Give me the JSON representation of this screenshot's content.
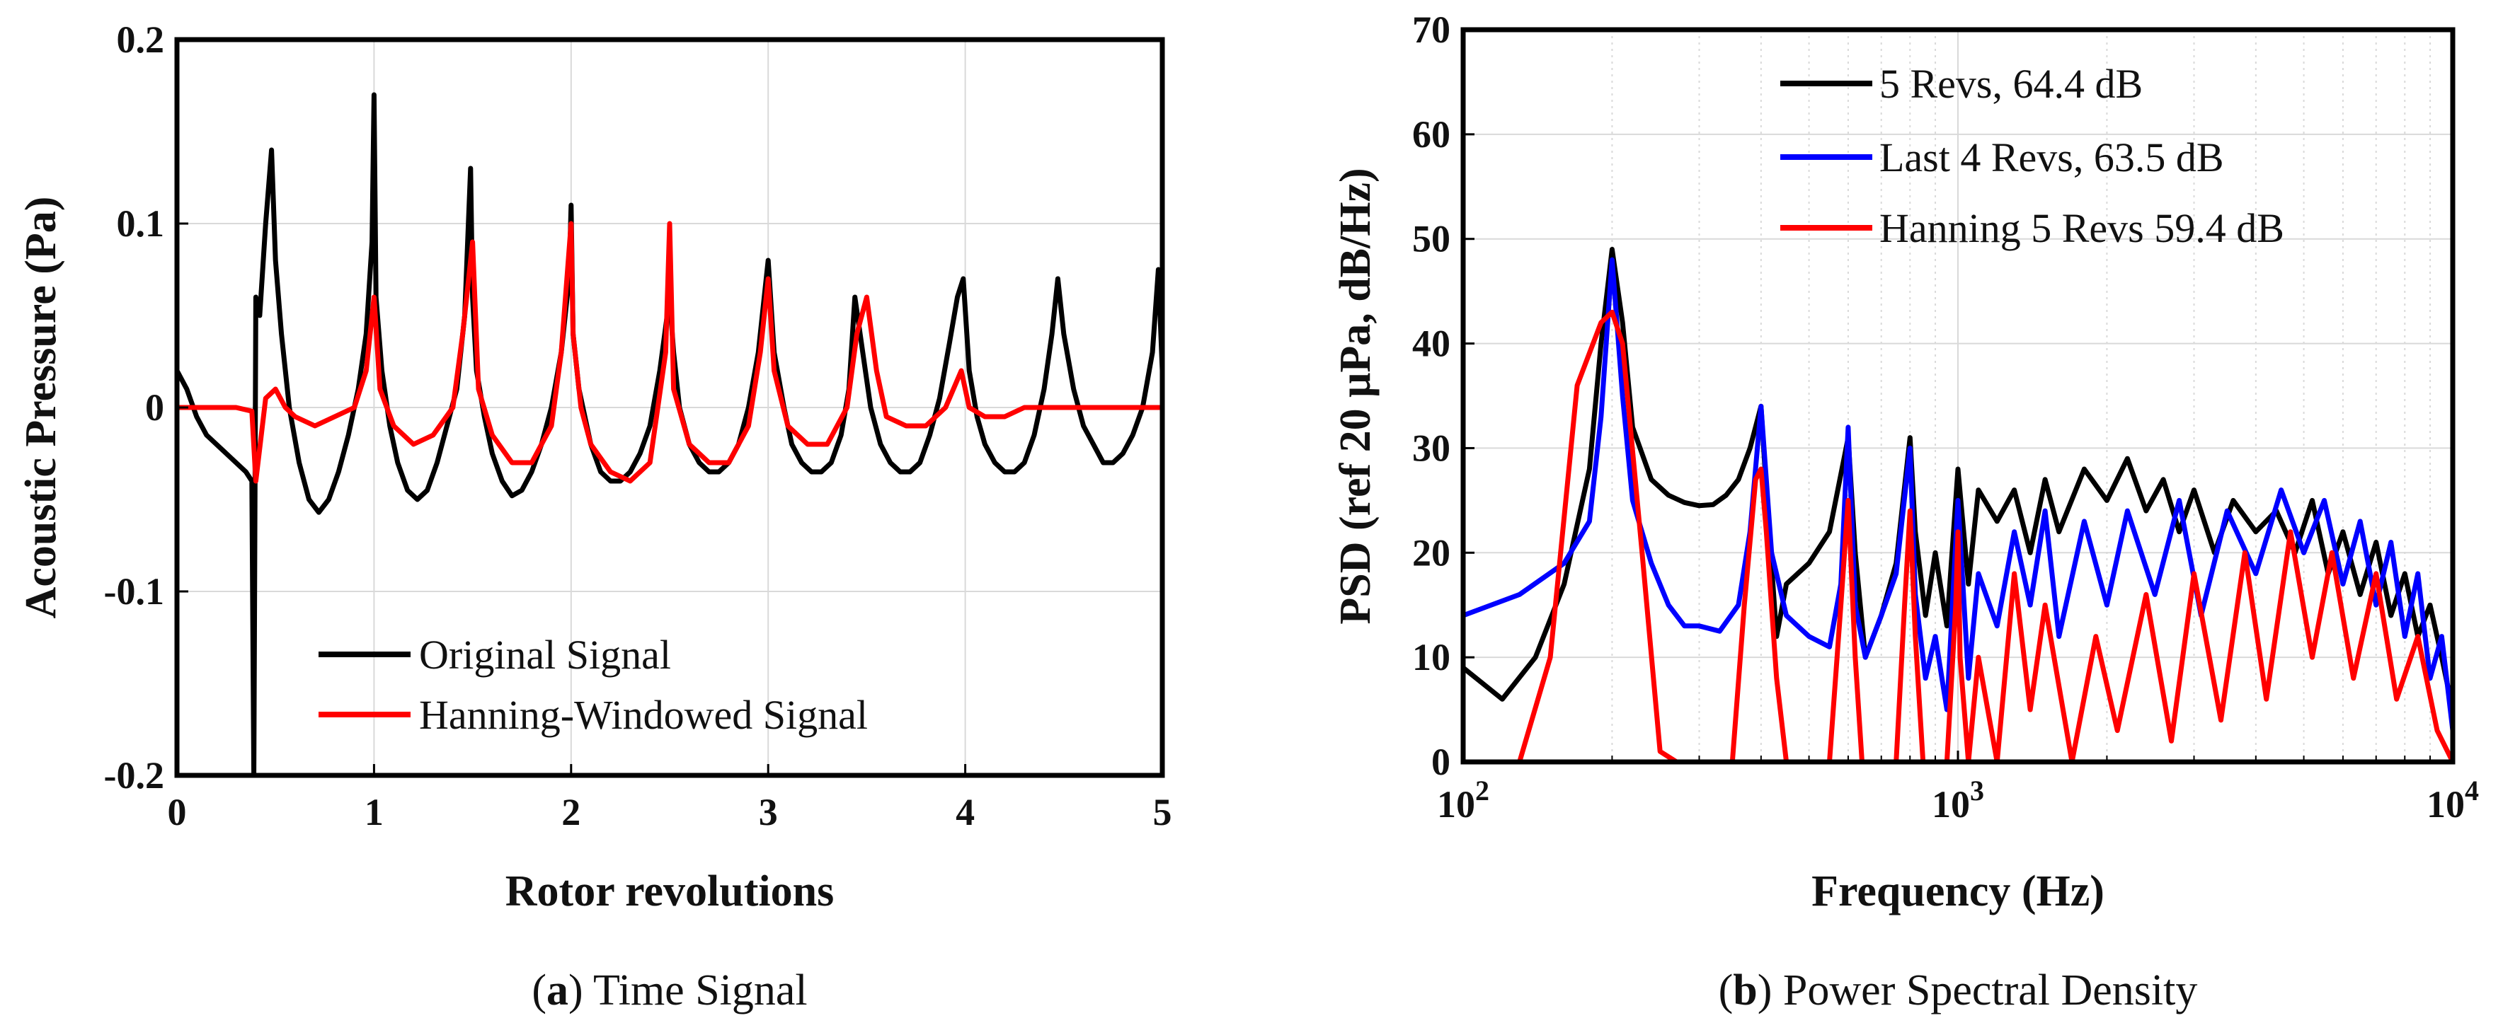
{
  "chart_data": [
    {
      "type": "line",
      "panel": "a",
      "caption_letter": "a",
      "caption_text": " Time Signal",
      "xlabel": "Rotor revolutions",
      "ylabel": "Acoustic Pressure (Pa)",
      "xlim": [
        0,
        5
      ],
      "ylim": [
        -0.2,
        0.2
      ],
      "xticks": [
        0,
        1,
        2,
        3,
        4,
        5
      ],
      "xtick_labels": [
        "0",
        "1",
        "2",
        "3",
        "4",
        "5"
      ],
      "yticks": [
        -0.2,
        -0.1,
        0,
        0.1,
        0.2
      ],
      "ytick_labels": [
        "-0.2",
        "-0.1",
        "0",
        "0.1",
        "0.2"
      ],
      "grid": true,
      "legend_position": "bottom-right",
      "series": [
        {
          "name": "Original Signal",
          "color": "#000000",
          "x": [
            0,
            0.05,
            0.1,
            0.15,
            0.2,
            0.25,
            0.3,
            0.35,
            0.38,
            0.39,
            0.4,
            0.42,
            0.45,
            0.48,
            0.5,
            0.53,
            0.57,
            0.62,
            0.67,
            0.72,
            0.77,
            0.82,
            0.87,
            0.92,
            0.96,
            0.99,
            1.0,
            1.01,
            1.04,
            1.08,
            1.12,
            1.17,
            1.22,
            1.27,
            1.32,
            1.37,
            1.42,
            1.46,
            1.49,
            1.5,
            1.52,
            1.56,
            1.6,
            1.65,
            1.7,
            1.75,
            1.8,
            1.85,
            1.9,
            1.95,
            1.99,
            2.0,
            2.01,
            2.04,
            2.1,
            2.15,
            2.2,
            2.25,
            2.3,
            2.35,
            2.4,
            2.45,
            2.5,
            2.52,
            2.55,
            2.6,
            2.65,
            2.7,
            2.75,
            2.8,
            2.85,
            2.9,
            2.95,
            2.99,
            3.0,
            3.03,
            3.08,
            3.12,
            3.17,
            3.22,
            3.27,
            3.32,
            3.37,
            3.41,
            3.44,
            3.48,
            3.52,
            3.57,
            3.62,
            3.67,
            3.72,
            3.77,
            3.82,
            3.87,
            3.92,
            3.96,
            3.99,
            4.02,
            4.06,
            4.1,
            4.15,
            4.2,
            4.25,
            4.3,
            4.35,
            4.4,
            4.44,
            4.47,
            4.5,
            4.55,
            4.6,
            4.65,
            4.7,
            4.75,
            4.8,
            4.85,
            4.9,
            4.95,
            4.98,
            5.0
          ],
          "y": [
            0.02,
            0.01,
            -0.005,
            -0.015,
            -0.02,
            -0.025,
            -0.03,
            -0.035,
            -0.04,
            -0.2,
            0.06,
            0.05,
            0.1,
            0.14,
            0.08,
            0.04,
            0.0,
            -0.03,
            -0.05,
            -0.057,
            -0.05,
            -0.035,
            -0.015,
            0.01,
            0.04,
            0.09,
            0.17,
            0.06,
            0.02,
            -0.01,
            -0.03,
            -0.045,
            -0.05,
            -0.045,
            -0.03,
            -0.01,
            0.01,
            0.05,
            0.13,
            0.06,
            0.02,
            -0.005,
            -0.025,
            -0.04,
            -0.048,
            -0.045,
            -0.035,
            -0.02,
            0.0,
            0.03,
            0.07,
            0.11,
            0.04,
            0.01,
            -0.02,
            -0.035,
            -0.04,
            -0.04,
            -0.035,
            -0.025,
            -0.01,
            0.02,
            0.06,
            0.03,
            0.0,
            -0.02,
            -0.03,
            -0.035,
            -0.035,
            -0.03,
            -0.02,
            0.0,
            0.03,
            0.07,
            0.08,
            0.03,
            0.0,
            -0.02,
            -0.03,
            -0.035,
            -0.035,
            -0.03,
            -0.015,
            0.01,
            0.06,
            0.03,
            0.0,
            -0.02,
            -0.03,
            -0.035,
            -0.035,
            -0.03,
            -0.015,
            0.005,
            0.035,
            0.06,
            0.07,
            0.02,
            -0.005,
            -0.02,
            -0.03,
            -0.035,
            -0.035,
            -0.03,
            -0.015,
            0.01,
            0.04,
            0.07,
            0.04,
            0.01,
            -0.01,
            -0.02,
            -0.03,
            -0.03,
            -0.025,
            -0.015,
            0.0,
            0.03,
            0.075,
            0.02
          ]
        },
        {
          "name": "Hanning-Windowed Signal",
          "color": "#ff0000",
          "x": [
            0,
            0.1,
            0.2,
            0.3,
            0.38,
            0.4,
            0.45,
            0.5,
            0.55,
            0.6,
            0.7,
            0.8,
            0.9,
            0.96,
            1.0,
            1.03,
            1.1,
            1.2,
            1.3,
            1.4,
            1.45,
            1.5,
            1.53,
            1.6,
            1.7,
            1.8,
            1.9,
            1.95,
            2.0,
            2.01,
            2.05,
            2.1,
            2.2,
            2.3,
            2.4,
            2.48,
            2.5,
            2.52,
            2.6,
            2.7,
            2.8,
            2.9,
            2.96,
            3.0,
            3.03,
            3.1,
            3.2,
            3.3,
            3.4,
            3.45,
            3.5,
            3.55,
            3.6,
            3.7,
            3.8,
            3.9,
            3.98,
            4.02,
            4.1,
            4.2,
            4.3,
            4.4,
            4.5,
            4.6,
            4.7,
            4.8,
            4.9,
            5.0
          ],
          "y": [
            0.0,
            0.0,
            0.0,
            0.0,
            -0.002,
            -0.04,
            0.005,
            0.01,
            0.0,
            -0.005,
            -0.01,
            -0.005,
            0.0,
            0.02,
            0.06,
            0.01,
            -0.01,
            -0.02,
            -0.015,
            0.0,
            0.04,
            0.09,
            0.01,
            -0.015,
            -0.03,
            -0.03,
            -0.01,
            0.03,
            0.1,
            0.04,
            0.0,
            -0.02,
            -0.035,
            -0.04,
            -0.03,
            0.03,
            0.1,
            0.01,
            -0.02,
            -0.03,
            -0.03,
            -0.01,
            0.03,
            0.07,
            0.02,
            -0.01,
            -0.02,
            -0.02,
            0.0,
            0.04,
            0.06,
            0.02,
            -0.005,
            -0.01,
            -0.01,
            0.0,
            0.02,
            0.0,
            -0.005,
            -0.005,
            0.0,
            0.0,
            0.0,
            0.0,
            0.0,
            0.0,
            0.0,
            0.0
          ]
        }
      ]
    },
    {
      "type": "line",
      "panel": "b",
      "caption_letter": "b",
      "caption_text": " Power Spectral Density",
      "xlabel": "Frequency (Hz)",
      "ylabel": "PSD (ref 20 μPa, dB/Hz)",
      "xscale": "log",
      "xlim": [
        100,
        10000
      ],
      "ylim": [
        0,
        70
      ],
      "xtick_base": "10",
      "xtick_exponents": [
        "2",
        "3",
        "4"
      ],
      "yticks": [
        0,
        10,
        20,
        30,
        40,
        50,
        60,
        70
      ],
      "ytick_labels": [
        "0",
        "10",
        "20",
        "30",
        "40",
        "50",
        "60",
        "70"
      ],
      "grid": true,
      "legend_position": "top-right",
      "series": [
        {
          "name": "5 Revs, 64.4 dB",
          "color": "#000000",
          "x": [
            100,
            120,
            140,
            160,
            180,
            190,
            200,
            210,
            220,
            240,
            260,
            280,
            300,
            320,
            340,
            360,
            380,
            400,
            410,
            430,
            450,
            500,
            550,
            600,
            620,
            650,
            700,
            750,
            800,
            820,
            860,
            900,
            950,
            1000,
            1050,
            1100,
            1200,
            1300,
            1400,
            1500,
            1600,
            1800,
            2000,
            2200,
            2400,
            2600,
            2800,
            3000,
            3300,
            3600,
            4000,
            4400,
            4800,
            5200,
            5600,
            6000,
            6500,
            7000,
            7500,
            8000,
            8500,
            9000,
            9500,
            10000
          ],
          "y": [
            9,
            6,
            10,
            17,
            28,
            40,
            49,
            42,
            32,
            27,
            25.5,
            24.8,
            24.5,
            24.6,
            25.5,
            27,
            30,
            34,
            26,
            12,
            17,
            19,
            22,
            31,
            20,
            10,
            14,
            19,
            31,
            22,
            14,
            20,
            13,
            28,
            17,
            26,
            23,
            26,
            20,
            27,
            22,
            28,
            25,
            29,
            24,
            27,
            22,
            26,
            20,
            25,
            22,
            24,
            20,
            25,
            18,
            22,
            16,
            21,
            14,
            18,
            12,
            15,
            10,
            5
          ]
        },
        {
          "name": "Last 4 Revs, 63.5 dB",
          "color": "#0000ff",
          "x": [
            100,
            130,
            160,
            180,
            190,
            200,
            210,
            220,
            240,
            260,
            280,
            300,
            330,
            360,
            380,
            400,
            420,
            450,
            500,
            550,
            580,
            600,
            620,
            650,
            700,
            750,
            800,
            820,
            860,
            900,
            950,
            1000,
            1050,
            1100,
            1200,
            1300,
            1400,
            1500,
            1600,
            1800,
            2000,
            2200,
            2500,
            2800,
            3100,
            3500,
            4000,
            4500,
            5000,
            5500,
            6000,
            6500,
            7000,
            7500,
            8000,
            8500,
            9000,
            9500,
            10000
          ],
          "y": [
            14,
            16,
            19,
            23,
            33,
            48,
            35,
            25,
            19,
            15,
            13,
            13,
            12.5,
            15,
            22,
            34,
            20,
            14,
            12,
            11,
            17,
            32,
            15,
            10,
            14,
            18,
            30,
            16,
            8,
            12,
            5,
            25,
            8,
            18,
            13,
            22,
            15,
            24,
            12,
            23,
            15,
            24,
            16,
            25,
            14,
            24,
            18,
            26,
            20,
            25,
            17,
            23,
            15,
            21,
            12,
            18,
            8,
            12,
            3
          ]
        },
        {
          "name": "Hanning 5 Revs 59.4 dB",
          "color": "#ff0000",
          "x": [
            130,
            150,
            170,
            190,
            200,
            210,
            230,
            250,
            270,
            290,
            350,
            370,
            390,
            400,
            410,
            430,
            450,
            550,
            580,
            600,
            620,
            640,
            750,
            780,
            800,
            820,
            850,
            950,
            990,
            1000,
            1010,
            1050,
            1100,
            1200,
            1300,
            1400,
            1500,
            1700,
            1900,
            2100,
            2400,
            2700,
            3000,
            3400,
            3800,
            4200,
            4700,
            5200,
            5700,
            6300,
            7000,
            7700,
            8500,
            9300,
            10000
          ],
          "y": [
            0,
            10,
            36,
            42,
            43,
            40,
            20,
            1,
            0,
            0,
            0,
            15,
            27,
            28,
            22,
            8,
            0,
            0,
            15,
            25,
            10,
            0,
            0,
            15,
            24,
            12,
            0,
            0,
            15,
            22,
            10,
            0,
            10,
            0,
            18,
            5,
            15,
            0,
            12,
            3,
            16,
            2,
            18,
            4,
            20,
            6,
            22,
            10,
            20,
            8,
            18,
            6,
            12,
            3,
            0
          ]
        }
      ]
    }
  ]
}
